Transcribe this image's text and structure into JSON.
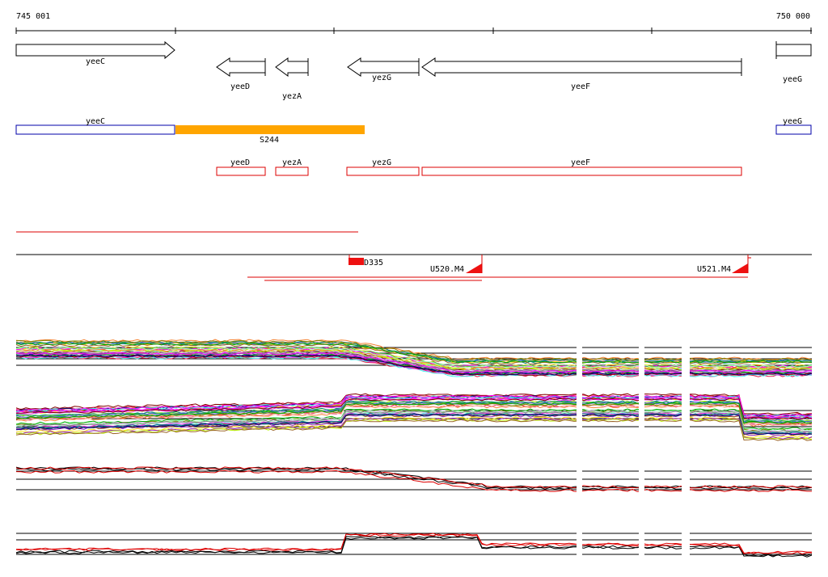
{
  "axis": {
    "start_label": "745 001",
    "end_label": "750 000"
  },
  "annotated_genes": [
    {
      "name": "yeeC",
      "strand": "+"
    },
    {
      "name": "yeeD",
      "strand": "-"
    },
    {
      "name": "yezA",
      "strand": "-"
    },
    {
      "name": "yezG",
      "strand": "-"
    },
    {
      "name": "yeeF",
      "strand": "-"
    },
    {
      "name": "yeeG",
      "strand": "+"
    }
  ],
  "segment_labels": {
    "yeeC": "yeeC",
    "S244": "S244",
    "yeeG": "yeeG"
  },
  "red_genes": [
    "yeeD",
    "yezA",
    "yezG",
    "yeeF"
  ],
  "features": {
    "d": "D335",
    "u1": "U520.M4",
    "u2": "U521.M4"
  },
  "colors": {
    "orange": "#ffa500",
    "blue_outline": "#0000aa",
    "red": "#dd0000",
    "feature_red": "#ee1111"
  },
  "tracks": [
    {
      "name": "expression-track-1",
      "kind": "multicolor"
    },
    {
      "name": "expression-track-2",
      "kind": "multicolor"
    },
    {
      "name": "expression-track-3",
      "kind": "red-black"
    },
    {
      "name": "expression-track-4",
      "kind": "red-black"
    }
  ]
}
